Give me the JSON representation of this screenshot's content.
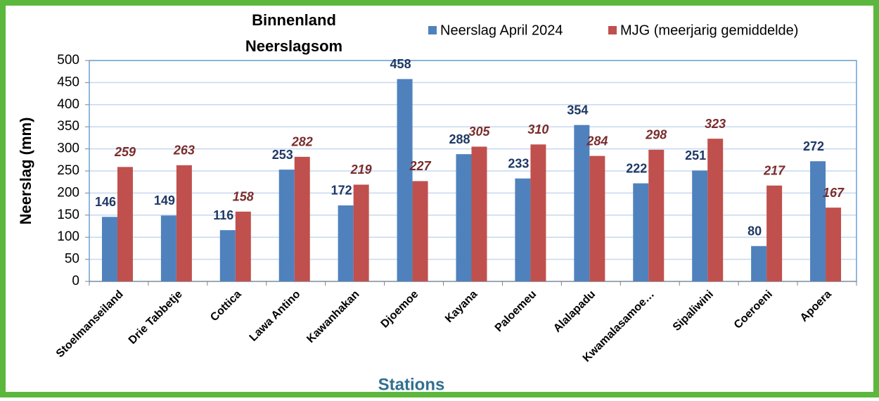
{
  "chart_data": {
    "type": "bar",
    "title": [
      "Binnenland",
      "Neerslagsom"
    ],
    "x_label": "Stations",
    "y_label": "Neerslag (mm)",
    "categories": [
      "Stoelmanseiland",
      "Drie Tabbetje",
      "Cottica",
      "Lawa Antino",
      "Kawanhakan",
      "Djoemoe",
      "Kayana",
      "Paloemeu",
      "Alalapadu",
      "Kwamalasamoe…",
      "Sipaliwini",
      "Coeroeni",
      "Apoera"
    ],
    "series": [
      {
        "name": "Neerslag April 2024",
        "color": "#4f81bd",
        "values": [
          146,
          149,
          116,
          253,
          172,
          458,
          288,
          233,
          354,
          222,
          251,
          80,
          272
        ]
      },
      {
        "name": "MJG (meerjarig gemiddelde)",
        "color": "#c0504d",
        "values": [
          259,
          263,
          158,
          282,
          219,
          227,
          305,
          310,
          284,
          298,
          323,
          217,
          167
        ]
      }
    ],
    "ylim": [
      0,
      500
    ],
    "yticks": [
      0,
      50,
      100,
      150,
      200,
      250,
      300,
      350,
      400,
      450,
      500
    ],
    "grid": true,
    "legend": "top-right"
  }
}
